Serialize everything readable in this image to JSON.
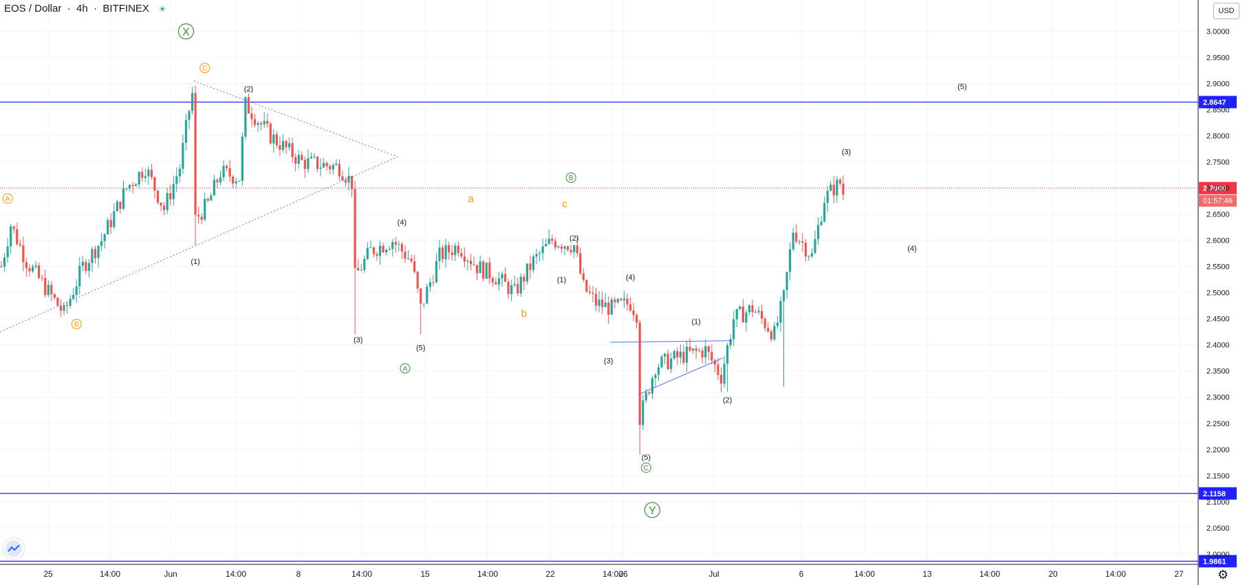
{
  "header": {
    "symbol": "EOS / Dollar",
    "interval": "4h",
    "exchange": "BITFINEX"
  },
  "currency_label": "USD",
  "countdown": "01:57:46",
  "colors": {
    "up": "#26a69a",
    "down": "#ef5350",
    "hline": "#2121ff",
    "last_price": "#f23645",
    "wave_orange": "#ff9800",
    "wave_green": "#388e3c",
    "grid": "#f0f3fa"
  },
  "chart_data": {
    "type": "candlestick",
    "title": "EOS / Dollar 4h BITFINEX",
    "ylim": [
      1.98,
      3.06
    ],
    "y_ticks": [
      "3.0000",
      "2.9500",
      "2.9000",
      "2.8500",
      "2.8000",
      "2.7500",
      "2.7000",
      "2.6500",
      "2.6000",
      "2.5500",
      "2.5000",
      "2.4500",
      "2.4000",
      "2.3500",
      "2.3000",
      "2.2500",
      "2.2000",
      "2.1500",
      "2.1000",
      "2.0500",
      "2.0000"
    ],
    "x_ticks": [
      "25",
      "14:00",
      "Jun",
      "14:00",
      "8",
      "14:00",
      "15",
      "14:00",
      "22",
      "14:00",
      "26",
      "Jul",
      "6",
      "14:00",
      "13",
      "14:00",
      "20",
      "14:00",
      "27"
    ],
    "horizontal_levels": [
      {
        "value": 2.8647,
        "label": "2.8647"
      },
      {
        "value": 2.1158,
        "label": "2.1158"
      },
      {
        "value": 1.9861,
        "label": "1.9861"
      }
    ],
    "last_price": {
      "value": 2.7,
      "label": "2.7000"
    },
    "waypoints": [
      [
        0,
        2.55
      ],
      [
        3,
        2.63
      ],
      [
        8,
        2.56
      ],
      [
        14,
        2.51
      ],
      [
        20,
        2.46
      ],
      [
        26,
        2.55
      ],
      [
        32,
        2.6
      ],
      [
        40,
        2.7
      ],
      [
        46,
        2.74
      ],
      [
        52,
        2.66
      ],
      [
        57,
        2.74
      ],
      [
        60,
        2.85
      ],
      [
        61,
        2.88
      ],
      [
        62,
        2.64
      ],
      [
        66,
        2.67
      ],
      [
        70,
        2.73
      ],
      [
        76,
        2.72
      ],
      [
        78,
        2.86
      ],
      [
        86,
        2.8
      ],
      [
        96,
        2.75
      ],
      [
        108,
        2.74
      ],
      [
        112,
        2.71
      ],
      [
        113,
        2.53
      ],
      [
        118,
        2.58
      ],
      [
        125,
        2.6
      ],
      [
        131,
        2.56
      ],
      [
        134,
        2.47
      ],
      [
        140,
        2.57
      ],
      [
        146,
        2.59
      ],
      [
        152,
        2.55
      ],
      [
        158,
        2.53
      ],
      [
        164,
        2.5
      ],
      [
        170,
        2.56
      ],
      [
        176,
        2.6
      ],
      [
        183,
        2.59
      ],
      [
        186,
        2.51
      ],
      [
        190,
        2.48
      ],
      [
        195,
        2.47
      ],
      [
        201,
        2.48
      ],
      [
        203,
        2.46
      ],
      [
        204,
        2.26
      ],
      [
        209,
        2.36
      ],
      [
        218,
        2.38
      ],
      [
        225,
        2.39
      ],
      [
        230,
        2.34
      ],
      [
        234,
        2.45
      ],
      [
        240,
        2.47
      ],
      [
        247,
        2.42
      ],
      [
        250,
        2.49
      ],
      [
        253,
        2.62
      ],
      [
        259,
        2.57
      ],
      [
        263,
        2.68
      ],
      [
        266,
        2.7
      ],
      [
        268,
        2.71
      ],
      [
        269,
        2.69
      ]
    ],
    "wicks": [
      {
        "i": 62,
        "low": 2.59
      },
      {
        "i": 113,
        "low": 2.42
      },
      {
        "i": 134,
        "low": 2.42
      },
      {
        "i": 204,
        "low": 2.19
      },
      {
        "i": 250,
        "low": 2.32
      },
      {
        "i": 232,
        "low": 2.31
      }
    ],
    "annotations": [
      {
        "text": "X",
        "style": "green-big",
        "i": 59,
        "v": 3.0
      },
      {
        "text": "Y",
        "style": "green-big",
        "i": 208,
        "v": 2.084
      },
      {
        "text": "A",
        "style": "orange-circle",
        "i": 2,
        "v": 2.68
      },
      {
        "text": "B",
        "style": "orange-circle",
        "i": 24,
        "v": 2.44
      },
      {
        "text": "C",
        "style": "orange-circle",
        "i": 65,
        "v": 2.93
      },
      {
        "text": "B",
        "style": "green-circle",
        "i": 182,
        "v": 2.72
      },
      {
        "text": "A",
        "style": "green-circle",
        "i": 129,
        "v": 2.355
      },
      {
        "text": "C",
        "style": "green-circle",
        "i": 206,
        "v": 2.165
      },
      {
        "text": "a",
        "style": "orange-text",
        "i": 150,
        "v": 2.68
      },
      {
        "text": "b",
        "style": "orange-text",
        "i": 167,
        "v": 2.46
      },
      {
        "text": "c",
        "style": "orange-text",
        "i": 180,
        "v": 2.67
      },
      {
        "text": "(1)",
        "style": "black",
        "i": 62,
        "v": 2.56
      },
      {
        "text": "(2)",
        "style": "black",
        "i": 79,
        "v": 2.89
      },
      {
        "text": "(3)",
        "style": "black",
        "i": 114,
        "v": 2.41
      },
      {
        "text": "(4)",
        "style": "black",
        "i": 128,
        "v": 2.635
      },
      {
        "text": "(5)",
        "style": "black",
        "i": 134,
        "v": 2.395
      },
      {
        "text": "(1)",
        "style": "black",
        "i": 179,
        "v": 2.525
      },
      {
        "text": "(2)",
        "style": "black",
        "i": 183,
        "v": 2.605
      },
      {
        "text": "(3)",
        "style": "black",
        "i": 194,
        "v": 2.37
      },
      {
        "text": "(4)",
        "style": "black",
        "i": 201,
        "v": 2.53
      },
      {
        "text": "(5)",
        "style": "black",
        "i": 206,
        "v": 2.185
      },
      {
        "text": "(1)",
        "style": "black",
        "i": 222,
        "v": 2.445
      },
      {
        "text": "(2)",
        "style": "black",
        "i": 232,
        "v": 2.295
      },
      {
        "text": "(3)",
        "style": "black",
        "i": 270,
        "v": 2.77
      },
      {
        "text": "(4)",
        "style": "black",
        "i": 291,
        "v": 2.585
      },
      {
        "text": "(5)",
        "style": "black",
        "i": 307,
        "v": 2.895
      }
    ],
    "trendlines": [
      {
        "style": "dotted",
        "from": [
          0,
          2.425
        ],
        "to": [
          127,
          2.76
        ]
      },
      {
        "style": "dotted",
        "from": [
          62,
          2.905
        ],
        "to": [
          127,
          2.76
        ]
      },
      {
        "style": "solid",
        "from": [
          195,
          2.405
        ],
        "to": [
          234,
          2.408
        ]
      },
      {
        "style": "solid",
        "from": [
          204,
          2.305
        ],
        "to": [
          231,
          2.375
        ]
      }
    ]
  }
}
